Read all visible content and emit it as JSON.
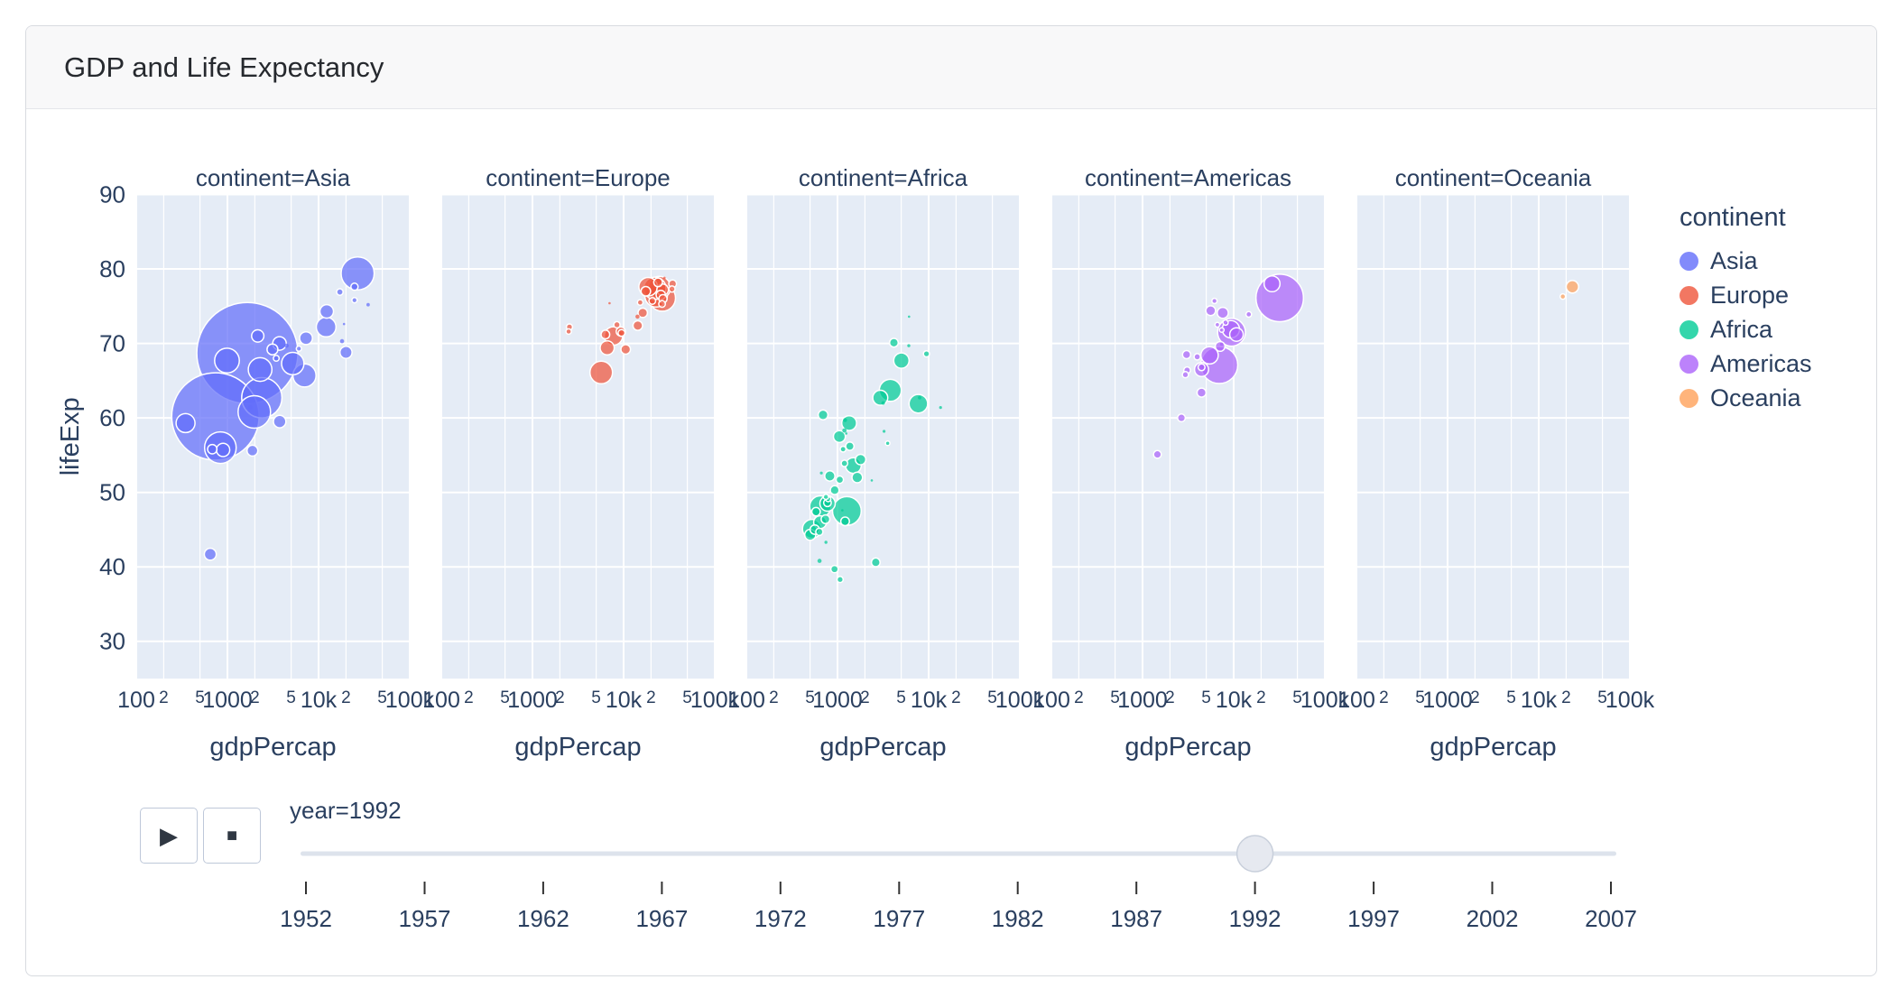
{
  "title": "GDP and Life Expectancy",
  "legend": {
    "title": "continent",
    "items": [
      {
        "label": "Asia",
        "color": "#636EFA"
      },
      {
        "label": "Europe",
        "color": "#EF553B"
      },
      {
        "label": "Africa",
        "color": "#00CC96"
      },
      {
        "label": "Americas",
        "color": "#AB63FA"
      },
      {
        "label": "Oceania",
        "color": "#FFA15A"
      }
    ]
  },
  "controls": {
    "play_icon": "▶",
    "stop_icon": "■"
  },
  "slider": {
    "current_label": "year=1992",
    "current_year": 1992,
    "year_min": 1952,
    "year_max": 2007,
    "tick_years": [
      1952,
      1957,
      1962,
      1967,
      1972,
      1977,
      1982,
      1987,
      1992,
      1997,
      2002,
      2007
    ]
  },
  "chart_data": {
    "type": "scatter",
    "subtype": "faceted-bubble",
    "title": "GDP and Life Expectancy",
    "xlabel": "gdpPercap",
    "ylabel": "lifeExp",
    "x_scale": "log",
    "xlim": [
      100,
      100000
    ],
    "ylim": [
      25,
      90
    ],
    "y_ticks": [
      30,
      40,
      50,
      60,
      70,
      80,
      90
    ],
    "x_ticks": [
      {
        "v": 100,
        "label": "100",
        "major": true
      },
      {
        "v": 200,
        "label": "2",
        "major": false
      },
      {
        "v": 500,
        "label": "5",
        "major": false
      },
      {
        "v": 1000,
        "label": "1000",
        "major": true
      },
      {
        "v": 2000,
        "label": "2",
        "major": false
      },
      {
        "v": 5000,
        "label": "5",
        "major": false
      },
      {
        "v": 10000,
        "label": "10k",
        "major": true
      },
      {
        "v": 20000,
        "label": "2",
        "major": false
      },
      {
        "v": 50000,
        "label": "5",
        "major": false
      },
      {
        "v": 100000,
        "label": "100k",
        "major": true
      }
    ],
    "facet_titles": [
      "continent=Asia",
      "continent=Europe",
      "continent=Africa",
      "continent=Americas",
      "continent=Oceania"
    ],
    "grid": true,
    "panel_background": "#E5ECF6",
    "grid_color": "#ffffff",
    "text_color": "#2a3f5f",
    "size_encoding": "population-millions",
    "point_format": [
      "gdpPercap",
      "lifeExp",
      "size"
    ],
    "series": [
      {
        "name": "Asia",
        "color": "#636EFA",
        "points": [
          [
            649,
            41.7,
            16.3
          ],
          [
            19036,
            72.6,
            0.5
          ],
          [
            838,
            56.0,
            113.7
          ],
          [
            682,
            55.8,
            10.2
          ],
          [
            1656,
            68.7,
            1165.0
          ],
          [
            24757,
            77.6,
            5.8
          ],
          [
            739,
            60.2,
            872.0
          ],
          [
            2383,
            62.7,
            184.8
          ],
          [
            7000,
            65.7,
            60.4
          ],
          [
            3745,
            59.5,
            17.9
          ],
          [
            17122,
            76.9,
            4.9
          ],
          [
            26825,
            79.4,
            124.3
          ],
          [
            3431,
            68.0,
            3.9
          ],
          [
            3726,
            70.0,
            20.7
          ],
          [
            12104,
            72.2,
            43.8
          ],
          [
            34933,
            75.2,
            1.4
          ],
          [
            6090,
            69.3,
            3.2
          ],
          [
            7277,
            70.7,
            18.8
          ],
          [
            1785,
            61.4,
            2.3
          ],
          [
            347,
            59.3,
            41.0
          ],
          [
            897,
            55.7,
            20.3
          ],
          [
            18095,
            70.3,
            1.9
          ],
          [
            1972,
            60.8,
            120.1
          ],
          [
            2280,
            66.5,
            64.0
          ],
          [
            20000,
            68.8,
            16.9
          ],
          [
            24770,
            75.8,
            3.2
          ],
          [
            2153,
            71.0,
            17.4
          ],
          [
            3119,
            69.2,
            13.2
          ],
          [
            12281,
            74.3,
            20.7
          ],
          [
            5207,
            67.3,
            56.7
          ],
          [
            989,
            67.7,
            69.5
          ],
          [
            4449,
            69.7,
            2.1
          ],
          [
            1879,
            55.6,
            13.4
          ]
        ]
      },
      {
        "name": "Europe",
        "color": "#EF553B",
        "points": [
          [
            2497,
            71.6,
            3.3
          ],
          [
            27042,
            76.0,
            7.9
          ],
          [
            25575,
            76.5,
            10.0
          ],
          [
            2547,
            72.2,
            4.3
          ],
          [
            6303,
            71.2,
            8.5
          ],
          [
            8448,
            72.5,
            4.5
          ],
          [
            14297,
            72.4,
            10.3
          ],
          [
            26407,
            75.3,
            5.2
          ],
          [
            20647,
            75.7,
            5.0
          ],
          [
            24704,
            77.5,
            57.4
          ],
          [
            26505,
            76.1,
            80.6
          ],
          [
            17541,
            77.0,
            10.3
          ],
          [
            10536,
            69.2,
            10.3
          ],
          [
            28061,
            78.8,
            0.3
          ],
          [
            15215,
            75.5,
            3.6
          ],
          [
            22013,
            77.4,
            56.8
          ],
          [
            7003,
            75.4,
            0.6
          ],
          [
            26791,
            77.2,
            15.2
          ],
          [
            33965,
            77.3,
            4.3
          ],
          [
            7739,
            71.0,
            38.4
          ],
          [
            16207,
            74.1,
            9.9
          ],
          [
            6598,
            69.4,
            22.8
          ],
          [
            9325,
            71.6,
            9.8
          ],
          [
            9498,
            71.4,
            5.3
          ],
          [
            14214,
            73.6,
            2.0
          ],
          [
            18603,
            77.6,
            39.5
          ],
          [
            23880,
            78.2,
            8.7
          ],
          [
            34480,
            78.0,
            6.9
          ],
          [
            5678,
            66.1,
            58.2
          ],
          [
            22705,
            76.4,
            57.9
          ]
        ]
      },
      {
        "name": "Africa",
        "color": "#00CC96",
        "points": [
          [
            5023,
            67.7,
            26.9
          ],
          [
            2628,
            40.6,
            8.7
          ],
          [
            1191,
            53.9,
            4.9
          ],
          [
            7954,
            62.7,
            1.3
          ],
          [
            932,
            50.3,
            8.9
          ],
          [
            632,
            44.7,
            5.8
          ],
          [
            1793,
            54.4,
            12.5
          ],
          [
            747,
            49.4,
            3.1
          ],
          [
            1058,
            51.7,
            6.2
          ],
          [
            1247,
            57.9,
            0.5
          ],
          [
            524,
            45.1,
            41.3
          ],
          [
            3553,
            56.6,
            2.4
          ],
          [
            1648,
            52.0,
            12.8
          ],
          [
            2377,
            51.6,
            0.5
          ],
          [
            3794,
            63.7,
            55.1
          ],
          [
            1132,
            47.6,
            0.4
          ],
          [
            791,
            49.1,
            3.2
          ],
          [
            649,
            48.1,
            51.9
          ],
          [
            13522,
            61.4,
            1.0
          ],
          [
            665,
            52.6,
            1.0
          ],
          [
            1049,
            57.5,
            16.1
          ],
          [
            777,
            48.6,
            6.4
          ],
          [
            747,
            43.3,
            1.1
          ],
          [
            1341,
            59.3,
            25.2
          ],
          [
            1210,
            59.7,
            1.8
          ],
          [
            636,
            40.8,
            1.9
          ],
          [
            9467,
            68.6,
            4.4
          ],
          [
            823,
            52.2,
            12.2
          ],
          [
            563,
            45.0,
            10.0
          ],
          [
            739,
            46.4,
            8.4
          ],
          [
            1191,
            58.3,
            2.1
          ],
          [
            6058,
            69.7,
            1.1
          ],
          [
            2948,
            62.7,
            25.8
          ],
          [
            502,
            44.3,
            14.0
          ],
          [
            3173,
            62.0,
            1.5
          ],
          [
            581,
            47.4,
            8.3
          ],
          [
            1267,
            47.5,
            93.4
          ],
          [
            6101,
            73.6,
            0.6
          ],
          [
            1367,
            56.2,
            8.0
          ],
          [
            1068,
            38.3,
            4.3
          ],
          [
            927,
            39.7,
            6.1
          ],
          [
            7710,
            61.9,
            39.3
          ],
          [
            1492,
            53.6,
            28.1
          ],
          [
            3244,
            58.2,
            1.0
          ],
          [
            779,
            48.5,
            26.6
          ],
          [
            1153,
            55.8,
            3.9
          ],
          [
            4161,
            70.1,
            8.6
          ],
          [
            644,
            46.0,
            18.7
          ],
          [
            1210,
            46.1,
            8.4
          ],
          [
            694,
            60.4,
            10.7
          ]
        ]
      },
      {
        "name": "Americas",
        "color": "#AB63FA",
        "points": [
          [
            9308,
            71.9,
            33.9
          ],
          [
            2674,
            60.0,
            6.9
          ],
          [
            6950,
            67.1,
            155.9
          ],
          [
            26343,
            78.0,
            28.5
          ],
          [
            7596,
            74.1,
            13.6
          ],
          [
            5444,
            68.4,
            34.2
          ],
          [
            6160,
            75.7,
            3.2
          ],
          [
            5592,
            74.4,
            10.7
          ],
          [
            3044,
            68.5,
            7.6
          ],
          [
            7103,
            69.6,
            10.7
          ],
          [
            4444,
            66.8,
            5.3
          ],
          [
            4439,
            63.4,
            9.3
          ],
          [
            1456,
            55.1,
            7.0
          ],
          [
            3081,
            66.4,
            5.1
          ],
          [
            7405,
            71.8,
            2.4
          ],
          [
            9472,
            71.5,
            88.1
          ],
          [
            2955,
            65.8,
            4.2
          ],
          [
            6618,
            72.5,
            2.5
          ],
          [
            3984,
            68.2,
            4.5
          ],
          [
            4446,
            66.5,
            22.4
          ],
          [
            14641,
            73.9,
            3.6
          ],
          [
            7370,
            69.9,
            1.2
          ],
          [
            32003,
            76.1,
            256.9
          ],
          [
            8137,
            72.8,
            3.1
          ],
          [
            10733,
            71.2,
            20.7
          ]
        ]
      },
      {
        "name": "Oceania",
        "color": "#FFA15A",
        "points": [
          [
            23425,
            77.6,
            17.5
          ],
          [
            18363,
            76.3,
            3.4
          ]
        ]
      }
    ]
  }
}
